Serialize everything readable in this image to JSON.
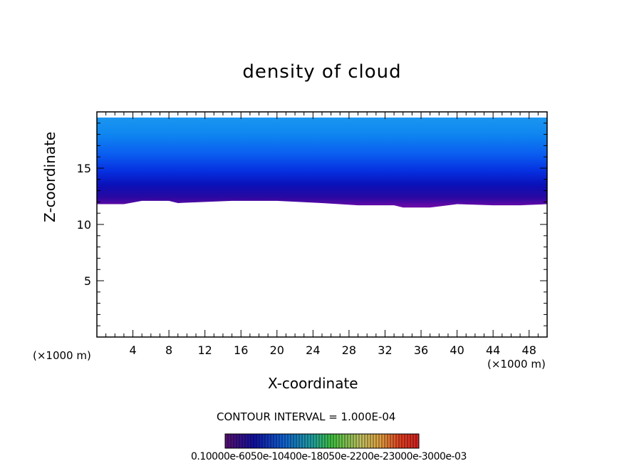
{
  "chart_data": {
    "type": "heatmap",
    "title": "density of cloud",
    "xlabel": "X-coordinate",
    "ylabel": "Z-coordinate",
    "x_unit_label_left": "(×1000 m)",
    "x_unit_label_right": "(×1000 m)",
    "xlim": [
      0,
      50
    ],
    "ylim": [
      0,
      20
    ],
    "x_ticks": [
      4,
      8,
      12,
      16,
      20,
      24,
      28,
      32,
      36,
      40,
      44,
      48
    ],
    "y_ticks": [
      5,
      10,
      15
    ],
    "cloud_top_z": 19.5,
    "cloud_base_profile": {
      "x": [
        0,
        3,
        5,
        8,
        9,
        15,
        20,
        25,
        29,
        33,
        34,
        37,
        40,
        44,
        47,
        50
      ],
      "z": [
        11.8,
        11.8,
        12.1,
        12.1,
        11.9,
        12.1,
        12.1,
        11.9,
        11.7,
        11.7,
        11.5,
        11.5,
        11.8,
        11.7,
        11.7,
        11.8
      ]
    },
    "contour_interval": "CONTOUR INTERVAL = 1.000E-04",
    "colorbar": {
      "labels": "0.10000e-6050e-10400e-18050e-2200e-23000e-3000e-03"
    }
  }
}
